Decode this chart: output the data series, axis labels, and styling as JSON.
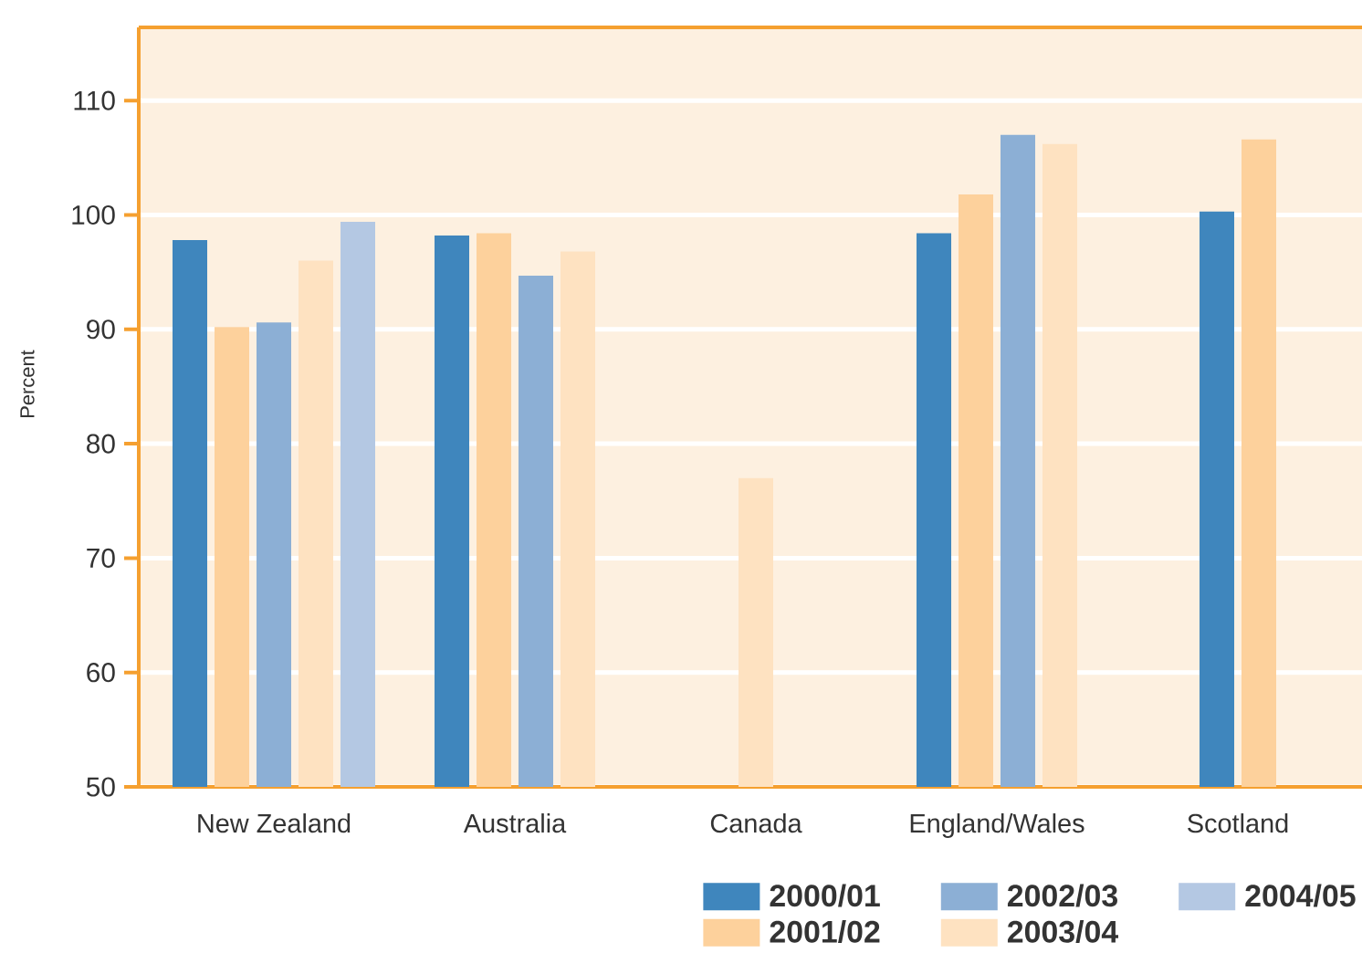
{
  "chart_data": {
    "type": "bar",
    "ylabel": "Percent",
    "categories": [
      "New Zealand",
      "Australia",
      "Canada",
      "England/Wales",
      "Scotland"
    ],
    "series": [
      {
        "name": "2000/01",
        "color": "#3f86bd",
        "values": [
          97.8,
          98.2,
          null,
          98.4,
          100.3
        ]
      },
      {
        "name": "2001/02",
        "color": "#fdd19c",
        "values": [
          90.2,
          98.4,
          null,
          101.8,
          106.6
        ]
      },
      {
        "name": "2002/03",
        "color": "#8cafd5",
        "values": [
          90.6,
          94.7,
          null,
          107.0,
          null
        ]
      },
      {
        "name": "2003/04",
        "color": "#fee2c1",
        "values": [
          96.0,
          96.8,
          77.0,
          106.2,
          null
        ]
      },
      {
        "name": "2004/05",
        "color": "#b4c8e3",
        "values": [
          99.4,
          null,
          null,
          null,
          null
        ]
      }
    ],
    "ylim": [
      50,
      116.4
    ],
    "yticks": [
      50,
      60,
      70,
      80,
      90,
      100,
      110
    ],
    "grid": "y",
    "legend": "bottom right"
  }
}
